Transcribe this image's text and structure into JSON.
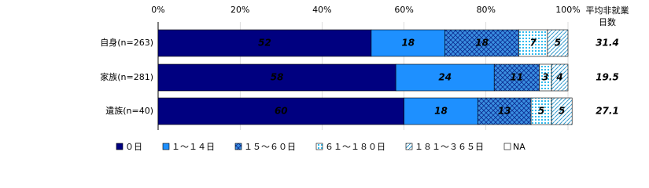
{
  "chart_data": {
    "type": "bar",
    "orientation": "horizontal",
    "stacked": true,
    "categories": [
      "自身(n=263)",
      "家族(n=281)",
      "遺族(n=40)"
    ],
    "series": [
      {
        "name": "０日",
        "color": "#000080",
        "values": [
          52,
          58,
          60
        ]
      },
      {
        "name": "１～１４日",
        "color": "#1e90ff",
        "values": [
          18,
          24,
          18
        ]
      },
      {
        "name": "１５～６０日",
        "color": "#3a8fe0",
        "values": [
          18,
          11,
          13
        ]
      },
      {
        "name": "６１～１８０日",
        "color": "#bfe9ff",
        "values": [
          7,
          3,
          5
        ]
      },
      {
        "name": "１８１～３６５日",
        "color": "#d8f0f8",
        "values": [
          5,
          4,
          5
        ]
      },
      {
        "name": "NA",
        "color": "#ffffff",
        "values": [
          0,
          0,
          0
        ]
      }
    ],
    "xlim": [
      0,
      100
    ],
    "xticks": [
      {
        "value": 0,
        "label": "0%"
      },
      {
        "value": 20,
        "label": "20%"
      },
      {
        "value": 40,
        "label": "40%"
      },
      {
        "value": 60,
        "label": "60%"
      },
      {
        "value": 80,
        "label": "80%"
      },
      {
        "value": 100,
        "label": "100%"
      }
    ],
    "value_column_title": [
      "平均非就業",
      "日数"
    ],
    "value_column": [
      31.4,
      19.5,
      27.1
    ]
  }
}
